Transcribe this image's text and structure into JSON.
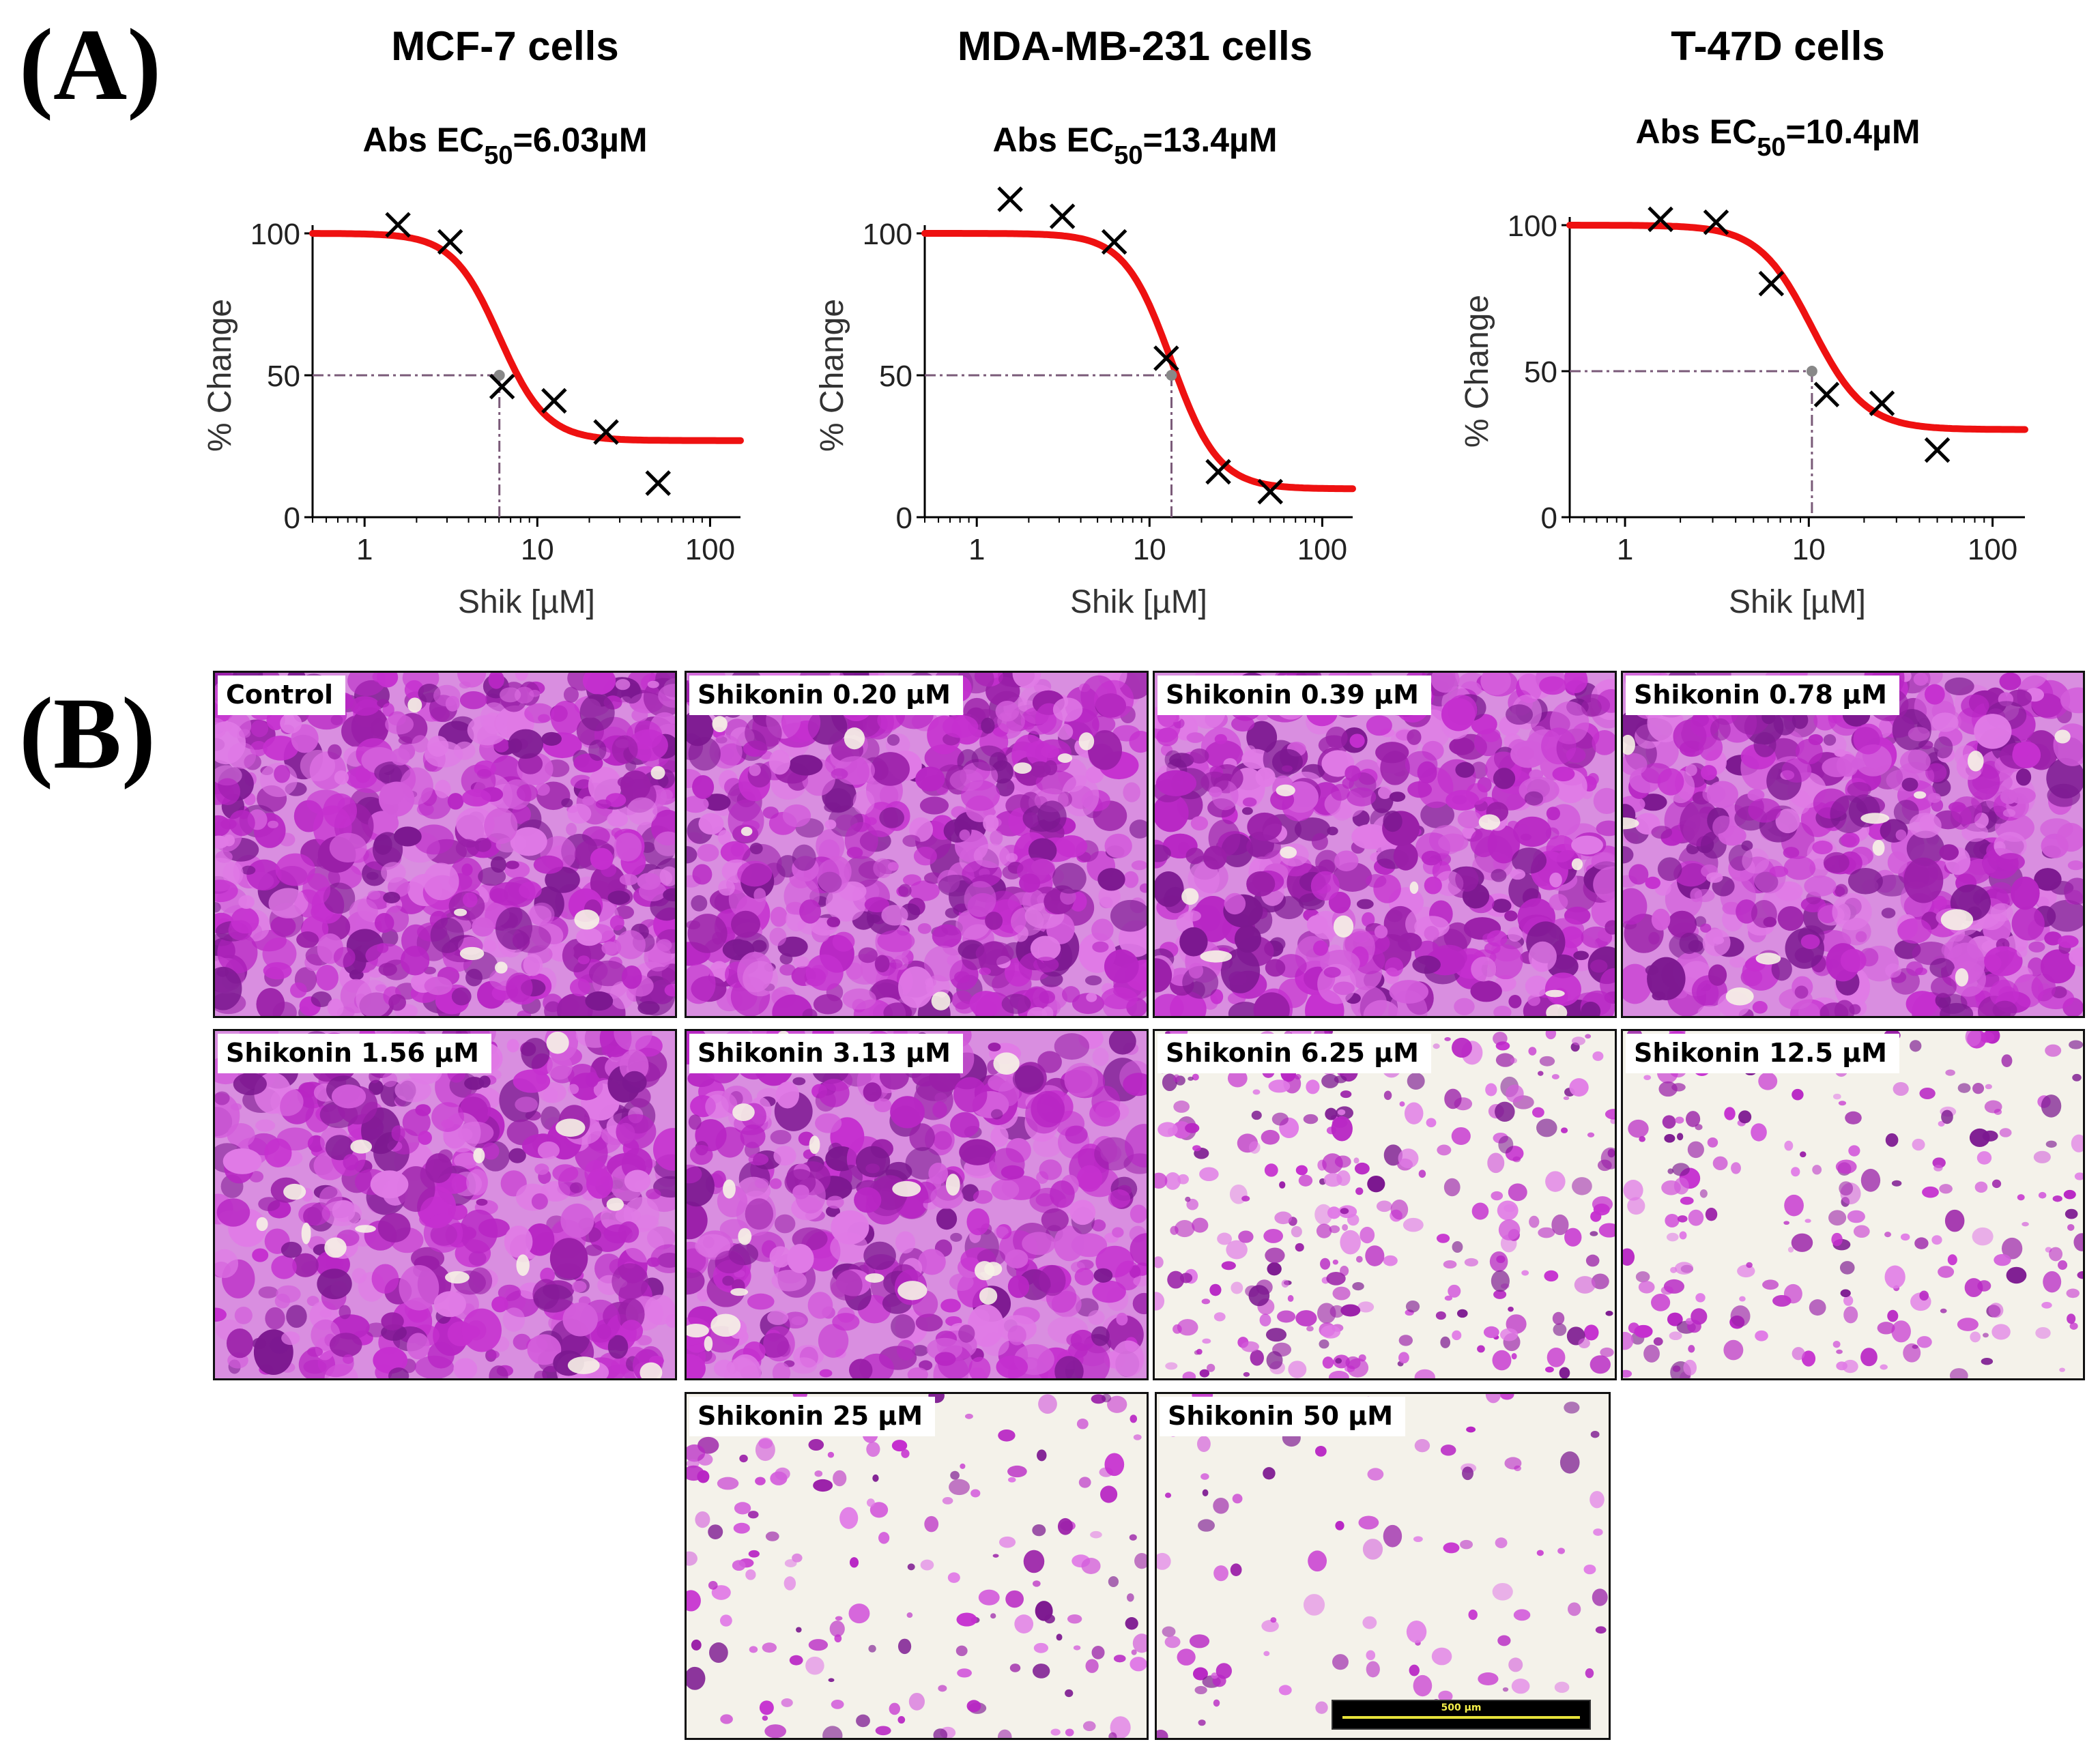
{
  "panel_labels": {
    "a": "(A)",
    "b": "(B)"
  },
  "colors": {
    "curve": "#ee1111",
    "guide": "#7a5a78",
    "marker": "#000000",
    "stain": "#c52fcf",
    "background_light": "#f4f2ea"
  },
  "chart_data": [
    {
      "type": "line",
      "title": "MCF-7 cells",
      "subtitle_prefix": "Abs EC",
      "subtitle_sub": "50",
      "subtitle_value": "=6.03µM",
      "xlabel": "Shik [µM]",
      "ylabel": "% Change",
      "xscale": "log",
      "xlim": [
        0.5,
        150
      ],
      "ylim": [
        0,
        100
      ],
      "xticks": [
        1,
        10,
        100
      ],
      "yticks": [
        0,
        50,
        100
      ],
      "ec50": 6.03,
      "fit": {
        "top": 100,
        "bottom": 27,
        "hill": 3.2
      },
      "points": [
        {
          "x": 1.56,
          "y": 103
        },
        {
          "x": 3.13,
          "y": 97
        },
        {
          "x": 6.25,
          "y": 46
        },
        {
          "x": 12.5,
          "y": 41
        },
        {
          "x": 25,
          "y": 30
        },
        {
          "x": 50,
          "y": 12
        }
      ]
    },
    {
      "type": "line",
      "title": "MDA-MB-231 cells",
      "subtitle_prefix": "Abs EC",
      "subtitle_sub": "50",
      "subtitle_value": "=13.4µM",
      "xlabel": "Shik [µM]",
      "ylabel": "% Change",
      "xscale": "log",
      "xlim": [
        0.5,
        150
      ],
      "ylim": [
        0,
        100
      ],
      "xticks": [
        1,
        10,
        100
      ],
      "yticks": [
        0,
        50,
        100
      ],
      "ec50": 13.4,
      "fit": {
        "top": 100,
        "bottom": 10,
        "hill": 3.2
      },
      "points": [
        {
          "x": 1.56,
          "y": 112
        },
        {
          "x": 3.13,
          "y": 106
        },
        {
          "x": 6.25,
          "y": 97
        },
        {
          "x": 12.5,
          "y": 56
        },
        {
          "x": 25,
          "y": 16
        },
        {
          "x": 50,
          "y": 9
        }
      ]
    },
    {
      "type": "line",
      "title": "T-47D cells",
      "subtitle_prefix": "Abs EC",
      "subtitle_sub": "50",
      "subtitle_value": "=10.4µM",
      "xlabel": "Shik [µM]",
      "ylabel": "% Change",
      "xscale": "log",
      "xlim": [
        0.5,
        150
      ],
      "ylim": [
        0,
        100
      ],
      "xticks": [
        1,
        10,
        100
      ],
      "yticks": [
        0,
        50,
        100
      ],
      "ec50": 10.4,
      "fit": {
        "top": 100,
        "bottom": 30,
        "hill": 3.0
      },
      "points": [
        {
          "x": 1.56,
          "y": 102
        },
        {
          "x": 3.13,
          "y": 101
        },
        {
          "x": 6.25,
          "y": 80
        },
        {
          "x": 12.5,
          "y": 42
        },
        {
          "x": 25,
          "y": 39
        },
        {
          "x": 50,
          "y": 23
        }
      ]
    }
  ],
  "micrographs": [
    {
      "label": "Control",
      "density": 1.0,
      "seed": 11
    },
    {
      "label": "Shikonin 0.20 µM",
      "density": 0.95,
      "seed": 23
    },
    {
      "label": "Shikonin 0.39 µM",
      "density": 0.9,
      "seed": 37
    },
    {
      "label": "Shikonin 0.78 µM",
      "density": 0.88,
      "seed": 41
    },
    {
      "label": "Shikonin 1.56 µM",
      "density": 0.8,
      "seed": 53
    },
    {
      "label": "Shikonin 3.13 µM",
      "density": 0.7,
      "seed": 67
    },
    {
      "label": "Shikonin 6.25 µM",
      "density": 0.45,
      "seed": 71
    },
    {
      "label": "Shikonin 12.5 µM",
      "density": 0.3,
      "seed": 83
    },
    {
      "label": "Shikonin 25 µM",
      "density": 0.18,
      "seed": 97
    },
    {
      "label": "Shikonin 50 µM",
      "density": 0.06,
      "seed": 101
    }
  ],
  "scale_bar": {
    "label": "500 µm"
  }
}
